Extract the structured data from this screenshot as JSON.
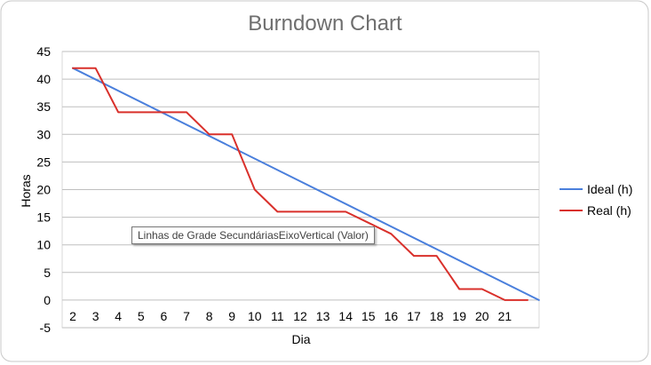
{
  "chart_data": {
    "type": "line",
    "title": "Burndown Chart",
    "xlabel": "Dia",
    "ylabel": "Horas",
    "categories": [
      "2",
      "3",
      "4",
      "5",
      "6",
      "7",
      "8",
      "9",
      "10",
      "11",
      "12",
      "13",
      "14",
      "15",
      "16",
      "17",
      "18",
      "19",
      "20",
      "21"
    ],
    "ylim": [
      -5,
      45
    ],
    "yticks": [
      45,
      40,
      35,
      30,
      25,
      20,
      15,
      10,
      5,
      0,
      -5
    ],
    "grid": true,
    "legend_position": "right",
    "series": [
      {
        "name": "Ideal (h)",
        "color": "#4a7fdc",
        "points": [
          [
            0,
            42
          ],
          [
            20.5,
            0
          ]
        ]
      },
      {
        "name": "Real (h)",
        "color": "#d9302b",
        "points": [
          [
            0,
            42
          ],
          [
            1,
            42
          ],
          [
            2,
            34
          ],
          [
            3,
            34
          ],
          [
            4,
            34
          ],
          [
            5,
            34
          ],
          [
            6,
            30
          ],
          [
            7,
            30
          ],
          [
            8,
            20
          ],
          [
            9,
            16
          ],
          [
            10,
            16
          ],
          [
            11,
            16
          ],
          [
            12,
            16
          ],
          [
            13,
            14
          ],
          [
            14,
            12
          ],
          [
            15,
            8
          ],
          [
            16,
            8
          ],
          [
            17,
            2
          ],
          [
            18,
            2
          ],
          [
            19,
            0
          ],
          [
            20,
            0
          ]
        ]
      }
    ]
  },
  "tooltip": {
    "text": "Linhas de Grade SecundáriasEixoVertical (Valor)"
  },
  "colors": {
    "plot_border": "#d9d9d9",
    "gridline": "#bfbfbf",
    "frame_border": "#c8c8c8"
  }
}
